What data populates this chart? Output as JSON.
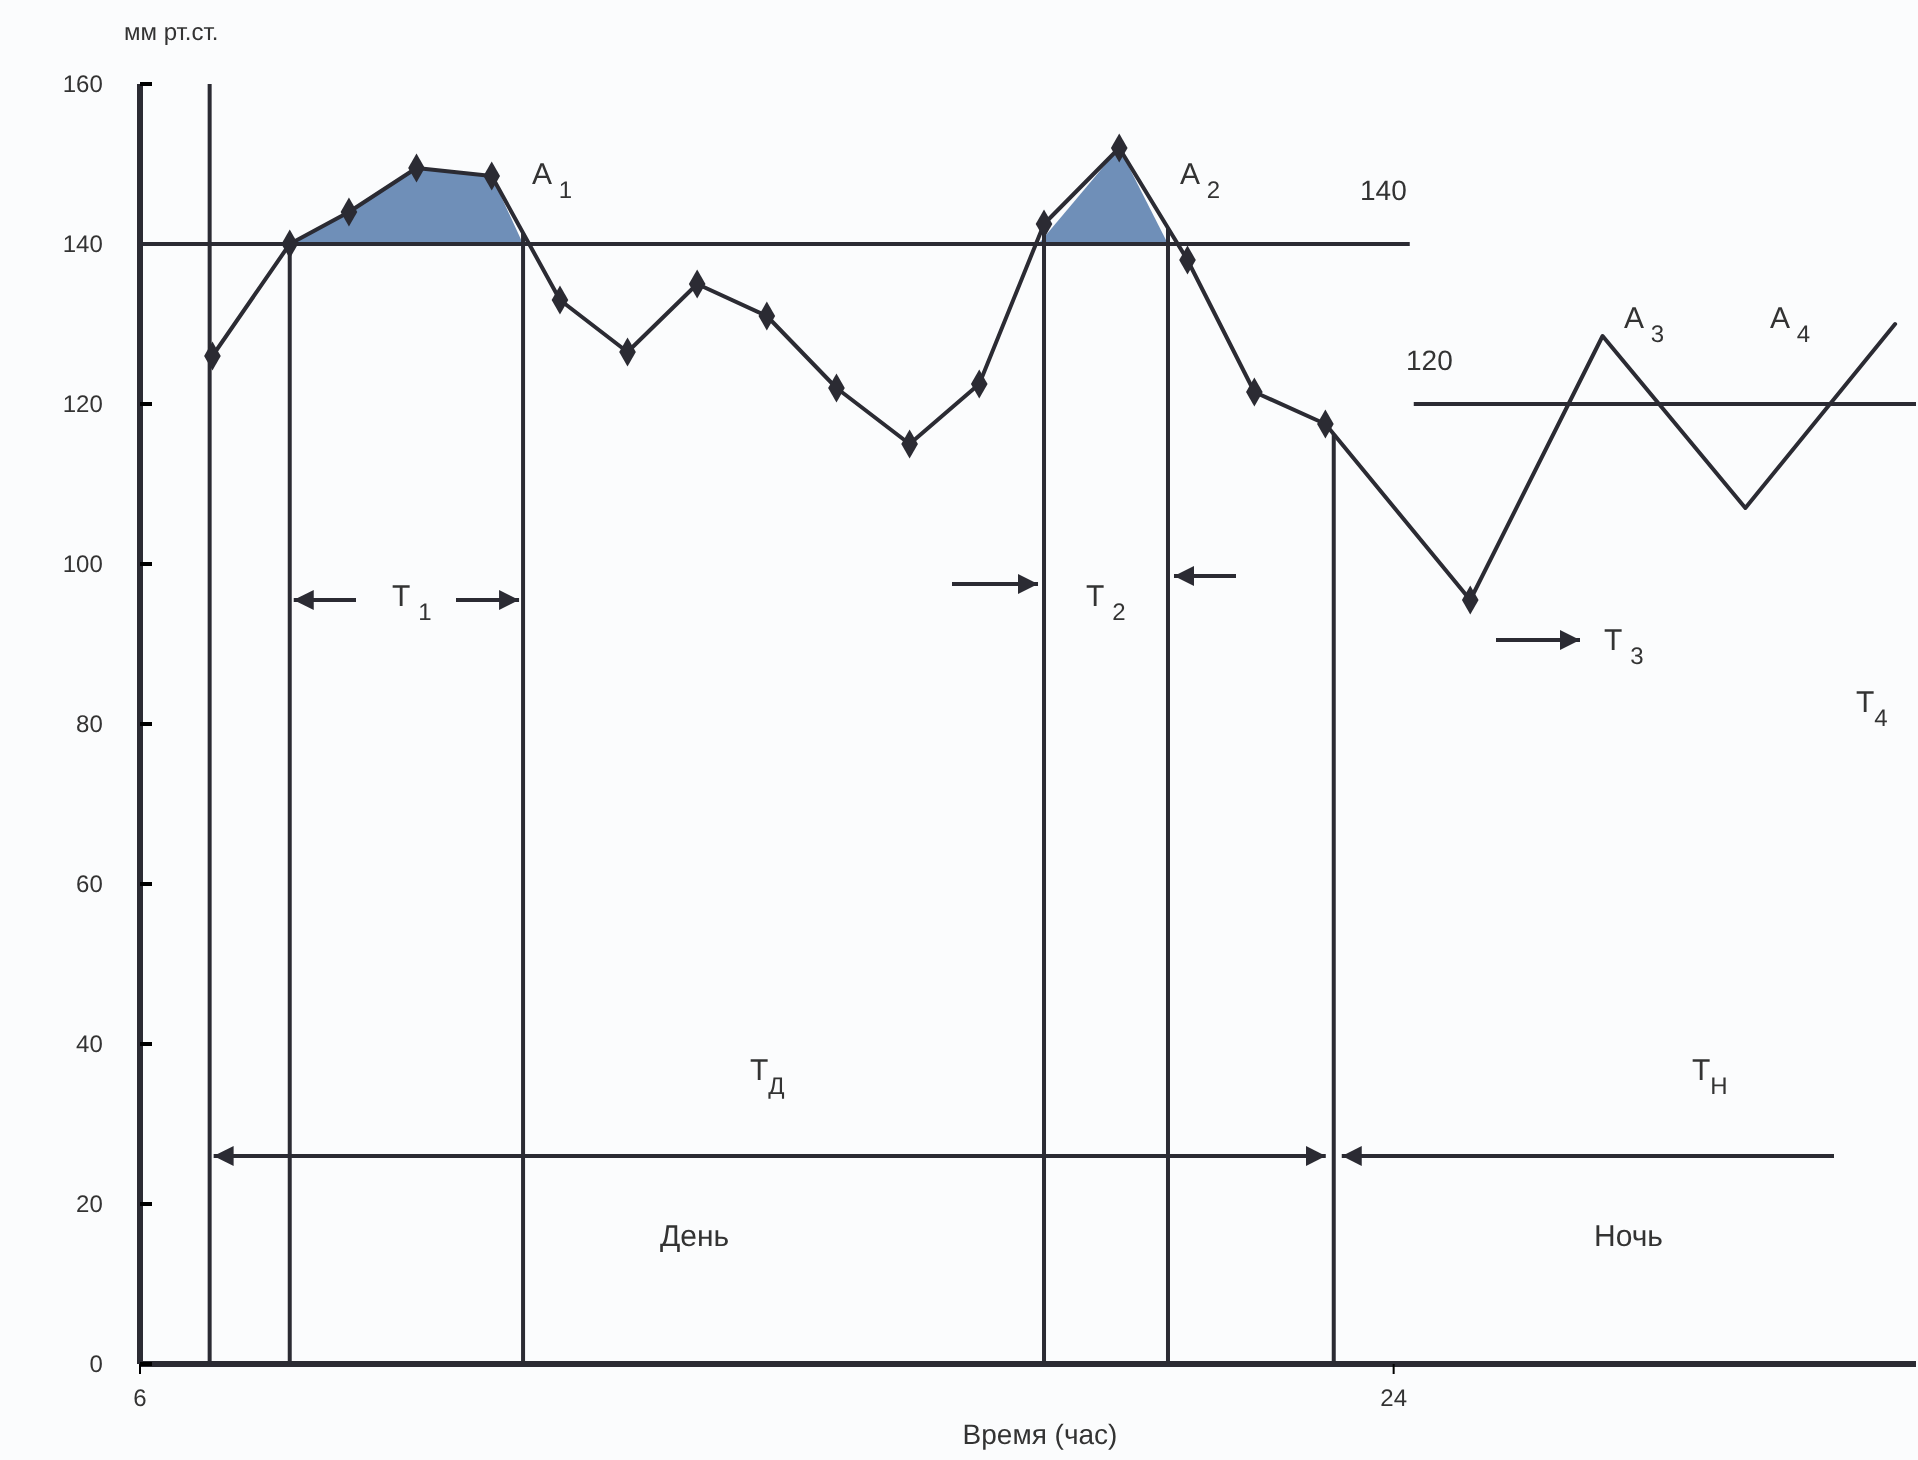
{
  "chart_data": {
    "type": "line",
    "ylabel": "мм рт.ст.",
    "xlabel": "Время (час)",
    "xlim": [
      6,
      31.5
    ],
    "xticks": [
      6,
      24
    ],
    "ylim": [
      0,
      160
    ],
    "yticks": [
      0,
      20,
      40,
      60,
      80,
      100,
      120,
      140,
      160
    ],
    "series": [
      {
        "type": "area",
        "color": "#6f8fb8",
        "x": [
          8.15,
          9.0,
          9.97,
          11.05,
          11.5
        ],
        "values": [
          140,
          144,
          149.5,
          148.5,
          140
        ]
      },
      {
        "type": "area",
        "color": "#6f8fb8",
        "x": [
          18.9,
          20.06,
          20.76
        ],
        "values": [
          140,
          152,
          140
        ]
      },
      {
        "color": "#2b2b33",
        "marker": "diamond",
        "x": [
          7.04,
          8.15,
          9.0,
          9.97,
          11.05,
          12.03,
          13.0,
          14.0,
          15.0,
          16.0,
          17.05,
          18.05,
          18.98,
          20.06,
          21.04,
          22.0,
          23.02,
          25.1
        ],
        "values": [
          126,
          140,
          144,
          149.5,
          148.5,
          133,
          126.5,
          135,
          131,
          122,
          115,
          122.5,
          142.5,
          152,
          138,
          121.5,
          117.5,
          95.5
        ]
      },
      {
        "color": "#2b2b33",
        "marker": "none",
        "x": [
          25.1,
          27.0,
          29.05,
          31.2
        ],
        "values": [
          95.5,
          128.5,
          107,
          130
        ]
      }
    ],
    "ref_lines": [
      {
        "axis": "y",
        "value": 140,
        "label": "140"
      },
      {
        "axis": "y",
        "value": 120,
        "label": "120"
      },
      {
        "axis": "x",
        "value": 7.0
      },
      {
        "axis": "x",
        "value": 8.15
      },
      {
        "axis": "x",
        "value": 11.5
      },
      {
        "axis": "x",
        "value": 18.98
      },
      {
        "axis": "x",
        "value": 20.76
      },
      {
        "axis": "x",
        "value": 23.14
      }
    ],
    "annotations": [
      "A $_{1}$",
      "A $_{2}$",
      "A $_{3}$",
      "A $_{4}$",
      "T $_{1}$",
      "T $_{2}$",
      "T $_{3}$",
      "T$_{4}$",
      "T$_{Д}$",
      "T$_{Н}$",
      "День",
      "Ночь"
    ],
    "grid": false
  }
}
